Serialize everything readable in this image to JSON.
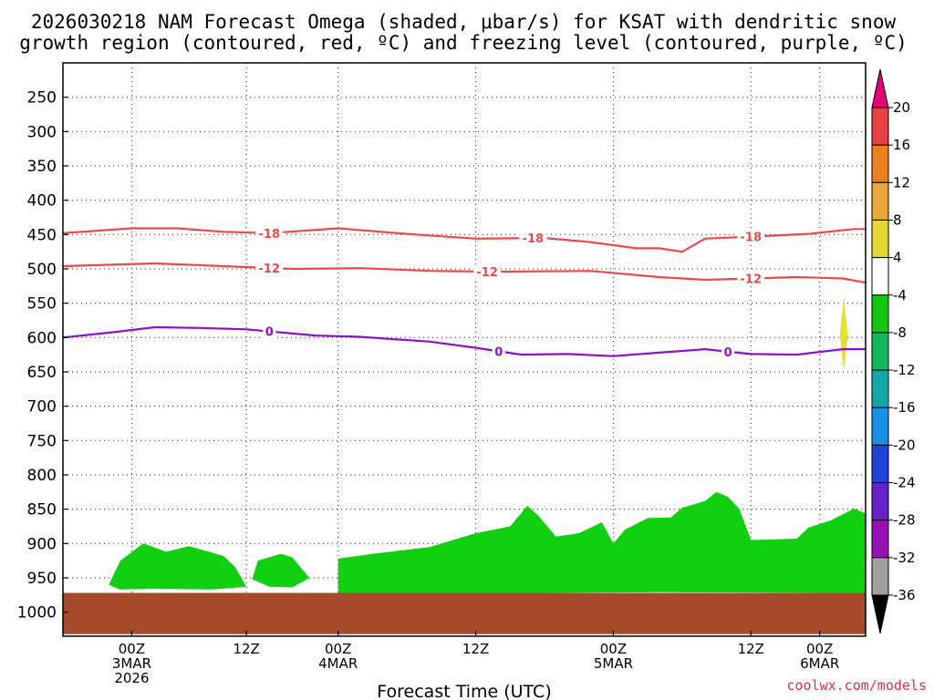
{
  "chart_data": {
    "type": "heatmap",
    "title_lines": [
      "2026030218 NAM Forecast Omega (shaded, μbar/s) for KSAT with dendritic snow",
      "growth region (contoured, red, ºC) and freezing level (contoured, purple, ºC)"
    ],
    "xlabel": "Forecast Time (UTC)",
    "ylabel": "",
    "y_axis": {
      "unit": "hPa",
      "range": [
        1035,
        200
      ],
      "ticks": [
        250,
        300,
        350,
        400,
        450,
        500,
        550,
        600,
        650,
        700,
        750,
        800,
        850,
        900,
        950,
        1000
      ]
    },
    "x_axis": {
      "unit": "forecast hour",
      "range": [
        -2,
        68
      ],
      "ticks": [
        {
          "hour": 4,
          "label": [
            "00Z",
            "3MAR",
            "2026"
          ]
        },
        {
          "hour": 14,
          "label": [
            "12Z"
          ]
        },
        {
          "hour": 22,
          "label": [
            "00Z",
            "4MAR"
          ]
        },
        {
          "hour": 34,
          "label": [
            "12Z"
          ]
        },
        {
          "hour": 46,
          "label": [
            "00Z",
            "5MAR"
          ]
        },
        {
          "hour": 58,
          "label": [
            "12Z"
          ]
        },
        {
          "hour": 64,
          "label": [
            "00Z",
            "6MAR"
          ]
        }
      ]
    },
    "colorbar": {
      "labels": [
        "20",
        "16",
        "12",
        "8",
        "4",
        "-4",
        "-8",
        "-12",
        "-16",
        "-20",
        "-24",
        "-28",
        "-32",
        "-36"
      ],
      "colors": [
        "#e8007a",
        "#e84040",
        "#ec8020",
        "#e8a838",
        "#e4d830",
        "#ffffff",
        "#10c810",
        "#10b860",
        "#10a8a8",
        "#1890e8",
        "#2040d8",
        "#6820c8",
        "#9810b8",
        "#a0a0a0",
        "#000000"
      ]
    },
    "contours": [
      {
        "name": "-18",
        "color": "#f04848",
        "labels_at_hours": [
          16,
          39,
          58
        ],
        "points": [
          [
            -2,
            448
          ],
          [
            4,
            441
          ],
          [
            8,
            441
          ],
          [
            12,
            446
          ],
          [
            16,
            448
          ],
          [
            22,
            441
          ],
          [
            28,
            449
          ],
          [
            34,
            456
          ],
          [
            40,
            455
          ],
          [
            44,
            461
          ],
          [
            48,
            470
          ],
          [
            50,
            470
          ],
          [
            52,
            475
          ],
          [
            54,
            456
          ],
          [
            58,
            453
          ],
          [
            63,
            449
          ],
          [
            67,
            442
          ],
          [
            68,
            442
          ]
        ]
      },
      {
        "name": "-12",
        "color": "#f04848",
        "labels_at_hours": [
          16,
          35,
          58
        ],
        "points": [
          [
            -2,
            496
          ],
          [
            6,
            492
          ],
          [
            12,
            496
          ],
          [
            18,
            500
          ],
          [
            24,
            499
          ],
          [
            30,
            503
          ],
          [
            36,
            504
          ],
          [
            44,
            503
          ],
          [
            50,
            512
          ],
          [
            54,
            516
          ],
          [
            58,
            514
          ],
          [
            62,
            512
          ],
          [
            66,
            514
          ],
          [
            68,
            520
          ]
        ]
      },
      {
        "name": "0",
        "color": "#9010c8",
        "labels_at_hours": [
          16,
          36,
          56
        ],
        "points": [
          [
            -2,
            600
          ],
          [
            2,
            593
          ],
          [
            6,
            585
          ],
          [
            10,
            586
          ],
          [
            14,
            588
          ],
          [
            20,
            597
          ],
          [
            24,
            599
          ],
          [
            30,
            606
          ],
          [
            34,
            615
          ],
          [
            38,
            625
          ],
          [
            42,
            624
          ],
          [
            46,
            627
          ],
          [
            50,
            622
          ],
          [
            54,
            617
          ],
          [
            58,
            624
          ],
          [
            62,
            625
          ],
          [
            66,
            617
          ],
          [
            68,
            617
          ]
        ]
      }
    ],
    "shaded_regions": [
      {
        "name": "omega -4 to -8 (green)",
        "color": "#10d010",
        "points": [
          [
            2,
            960
          ],
          [
            3,
            925
          ],
          [
            5,
            900
          ],
          [
            7,
            912
          ],
          [
            9,
            904
          ],
          [
            12,
            918
          ],
          [
            13,
            934
          ],
          [
            14,
            963
          ],
          [
            11,
            967
          ],
          [
            6,
            966
          ],
          [
            3,
            967
          ]
        ]
      },
      {
        "name": "omega -4 to -8 (green)",
        "color": "#10d010",
        "points": [
          [
            14.5,
            952
          ],
          [
            15,
            925
          ],
          [
            17,
            915
          ],
          [
            18,
            920
          ],
          [
            19.5,
            950
          ],
          [
            18,
            964
          ],
          [
            16,
            963
          ]
        ]
      },
      {
        "name": "omega -4 to -8 (green)",
        "color": "#10d010",
        "points": [
          [
            22,
            972
          ],
          [
            22,
            922
          ],
          [
            25,
            915
          ],
          [
            30,
            905
          ],
          [
            34,
            885
          ],
          [
            37,
            875
          ],
          [
            38.5,
            845
          ],
          [
            39.5,
            860
          ],
          [
            41,
            890
          ],
          [
            43,
            885
          ],
          [
            45,
            869
          ],
          [
            46,
            900
          ],
          [
            47,
            880
          ],
          [
            49,
            863
          ],
          [
            51,
            862
          ],
          [
            52,
            848
          ],
          [
            54,
            838
          ],
          [
            55,
            825
          ],
          [
            56,
            832
          ],
          [
            57,
            850
          ],
          [
            58,
            895
          ],
          [
            62,
            893
          ],
          [
            63,
            877
          ],
          [
            65,
            866
          ],
          [
            67,
            849
          ],
          [
            68,
            856
          ],
          [
            68,
            972
          ],
          [
            50,
            971
          ],
          [
            40,
            972
          ],
          [
            30,
            972
          ]
        ]
      },
      {
        "name": "omega 4 to 8 (yellow)",
        "color": "#e8e030",
        "points": [
          [
            66.1,
            540
          ],
          [
            66.45,
            595
          ],
          [
            66.1,
            650
          ],
          [
            65.75,
            595
          ]
        ]
      },
      {
        "name": "ground",
        "color": "#a54a2a",
        "points": [
          [
            -2,
            1032
          ],
          [
            68,
            1032
          ],
          [
            68,
            972
          ],
          [
            -2,
            972
          ]
        ]
      }
    ]
  },
  "credit": "coolwx.com/models"
}
